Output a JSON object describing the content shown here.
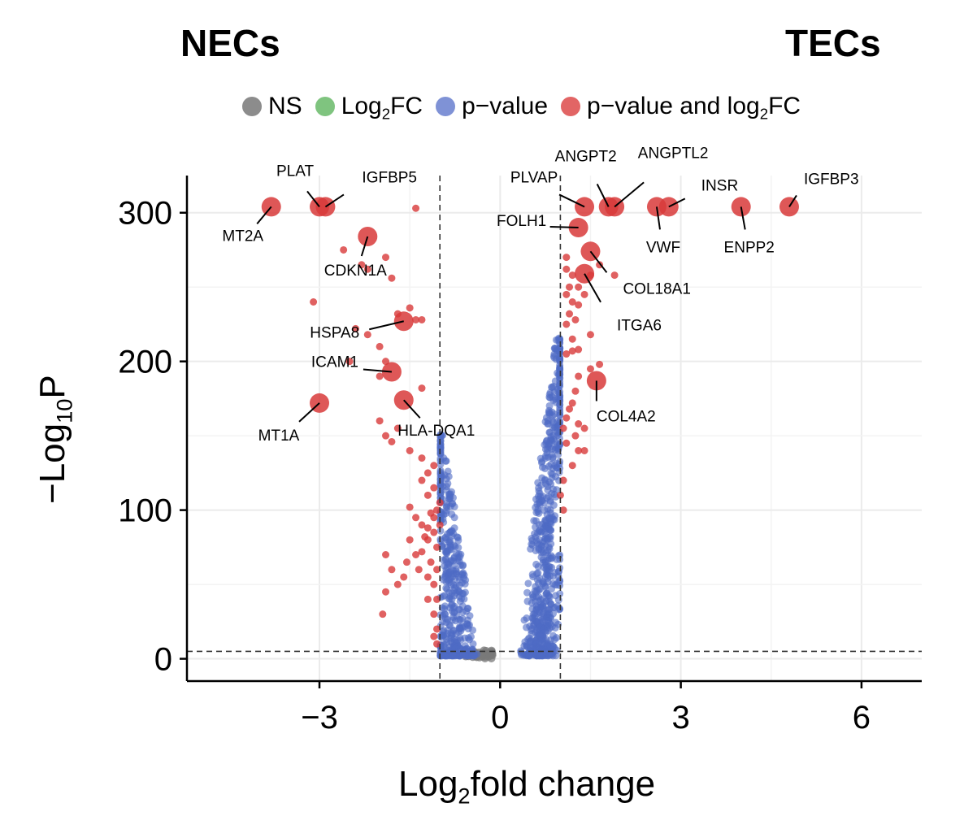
{
  "header": {
    "left": "NECs",
    "right": "TECs"
  },
  "legend": {
    "items": [
      {
        "name": "NS",
        "color": "#8c8c8c",
        "text": "NS",
        "sub": "",
        "after": ""
      },
      {
        "name": "log2fc",
        "color": "#7fc47f",
        "text": "Log",
        "sub": "2",
        "after": "FC"
      },
      {
        "name": "pvalue",
        "color": "#7f92d6",
        "text": "p−value",
        "sub": "",
        "after": ""
      },
      {
        "name": "both",
        "color": "#e26565",
        "text": "p−value and log",
        "sub": "2",
        "after": "FC"
      }
    ]
  },
  "chart_data": {
    "type": "scatter",
    "title": "",
    "xlabel": {
      "main": "Log",
      "sub": "2",
      "after": "fold change"
    },
    "ylabel": {
      "main": "−Log",
      "sub": "10",
      "after": "P"
    },
    "xlim": [
      -5.2,
      7.0
    ],
    "ylim": [
      -15,
      325
    ],
    "xticks": [
      -3,
      0,
      3,
      6
    ],
    "xtick_labels": [
      "−3",
      "0",
      "3",
      "6"
    ],
    "yticks": [
      0,
      100,
      200,
      300
    ],
    "ytick_labels": [
      "0",
      "100",
      "200",
      "300"
    ],
    "fc_cutoff": [
      -1,
      1
    ],
    "p_cutoff": 5,
    "colors": {
      "ns": "#7a7a7a",
      "pvalue": "#4f6bc4",
      "both": "#d83a3a"
    },
    "labeled_genes": [
      {
        "gene": "MT2A",
        "x": -3.8,
        "y": 304
      },
      {
        "gene": "PLAT",
        "x": -3.0,
        "y": 304
      },
      {
        "gene": "IGFBP5",
        "x": -2.9,
        "y": 304
      },
      {
        "gene": "CDKN1A",
        "x": -2.2,
        "y": 284
      },
      {
        "gene": "HSPA8",
        "x": -1.6,
        "y": 227
      },
      {
        "gene": "ICAM1",
        "x": -1.8,
        "y": 193
      },
      {
        "gene": "MT1A",
        "x": -3.0,
        "y": 172
      },
      {
        "gene": "HLA-DQA1",
        "x": -1.6,
        "y": 174
      },
      {
        "gene": "PLVAP",
        "x": 1.4,
        "y": 304
      },
      {
        "gene": "ANGPT2",
        "x": 1.8,
        "y": 304
      },
      {
        "gene": "ANGPTL2",
        "x": 1.9,
        "y": 304
      },
      {
        "gene": "FOLH1",
        "x": 1.3,
        "y": 290
      },
      {
        "gene": "VWF",
        "x": 2.6,
        "y": 304
      },
      {
        "gene": "INSR",
        "x": 2.8,
        "y": 304
      },
      {
        "gene": "ENPP2",
        "x": 4.0,
        "y": 304
      },
      {
        "gene": "IGFBP3",
        "x": 4.8,
        "y": 304
      },
      {
        "gene": "COL18A1",
        "x": 1.5,
        "y": 274
      },
      {
        "gene": "ITGA6",
        "x": 1.4,
        "y": 259
      },
      {
        "gene": "COL4A2",
        "x": 1.6,
        "y": 187
      }
    ],
    "red_points": [
      [
        -3.1,
        240
      ],
      [
        -2.6,
        275
      ],
      [
        -2.3,
        265
      ],
      [
        -2.2,
        262
      ],
      [
        -1.8,
        256
      ],
      [
        -1.9,
        270
      ],
      [
        -1.4,
        303
      ],
      [
        -1.7,
        232
      ],
      [
        -1.5,
        236
      ],
      [
        -1.4,
        228
      ],
      [
        -1.3,
        228
      ],
      [
        -2.4,
        222
      ],
      [
        -2.2,
        218
      ],
      [
        -2.0,
        210
      ],
      [
        -2.5,
        200
      ],
      [
        -2.0,
        190
      ],
      [
        -1.9,
        200
      ],
      [
        -1.3,
        182
      ],
      [
        -2.0,
        160
      ],
      [
        -1.9,
        150
      ],
      [
        -1.8,
        146
      ],
      [
        -1.7,
        155
      ],
      [
        -1.5,
        140
      ],
      [
        -1.3,
        135
      ],
      [
        -1.2,
        125
      ],
      [
        -1.1,
        115
      ],
      [
        -1.2,
        110
      ],
      [
        -1.05,
        100
      ],
      [
        -1.15,
        98
      ],
      [
        -1.3,
        90
      ],
      [
        -1.4,
        95
      ],
      [
        -1.5,
        102
      ],
      [
        -1.1,
        85
      ],
      [
        -1.2,
        80
      ],
      [
        -1.05,
        75
      ],
      [
        -1.3,
        72
      ],
      [
        -1.4,
        70
      ],
      [
        -1.15,
        65
      ],
      [
        -1.05,
        60
      ],
      [
        -1.2,
        55
      ],
      [
        -1.35,
        60
      ],
      [
        -1.5,
        80
      ],
      [
        -1.55,
        65
      ],
      [
        -1.6,
        55
      ],
      [
        -1.7,
        50
      ],
      [
        -1.9,
        70
      ],
      [
        -1.8,
        60
      ],
      [
        -1.9,
        45
      ],
      [
        -1.95,
        30
      ],
      [
        -1.1,
        50
      ],
      [
        -1.05,
        40
      ],
      [
        -1.1,
        30
      ],
      [
        -1.05,
        20
      ],
      [
        -1.1,
        15
      ],
      [
        -1.05,
        10
      ],
      [
        -1.2,
        40
      ],
      [
        -1.0,
        90
      ],
      [
        -1.0,
        105
      ],
      [
        -1.1,
        95
      ],
      [
        -1.2,
        88
      ],
      [
        -1.3,
        120
      ],
      [
        -1.1,
        130
      ],
      [
        -1.25,
        82
      ],
      [
        1.1,
        270
      ],
      [
        1.1,
        262
      ],
      [
        1.2,
        258
      ],
      [
        1.15,
        250
      ],
      [
        1.3,
        250
      ],
      [
        1.4,
        245
      ],
      [
        1.2,
        240
      ],
      [
        1.3,
        238
      ],
      [
        1.15,
        232
      ],
      [
        1.25,
        228
      ],
      [
        1.1,
        225
      ],
      [
        1.2,
        207
      ],
      [
        1.3,
        208
      ],
      [
        1.1,
        205
      ],
      [
        1.5,
        195
      ],
      [
        1.65,
        198
      ],
      [
        1.3,
        190
      ],
      [
        1.25,
        180
      ],
      [
        1.2,
        172
      ],
      [
        1.15,
        168
      ],
      [
        1.1,
        162
      ],
      [
        1.3,
        158
      ],
      [
        1.4,
        155
      ],
      [
        1.25,
        150
      ],
      [
        1.1,
        145
      ],
      [
        1.3,
        140
      ],
      [
        1.2,
        130
      ],
      [
        1.05,
        120
      ],
      [
        1.4,
        140
      ],
      [
        1.0,
        110
      ],
      [
        1.05,
        100
      ],
      [
        1.5,
        218
      ],
      [
        1.5,
        258
      ],
      [
        1.65,
        265
      ],
      [
        1.9,
        258
      ],
      [
        1.1,
        245
      ],
      [
        1.2,
        215
      ],
      [
        1.05,
        155
      ]
    ]
  }
}
